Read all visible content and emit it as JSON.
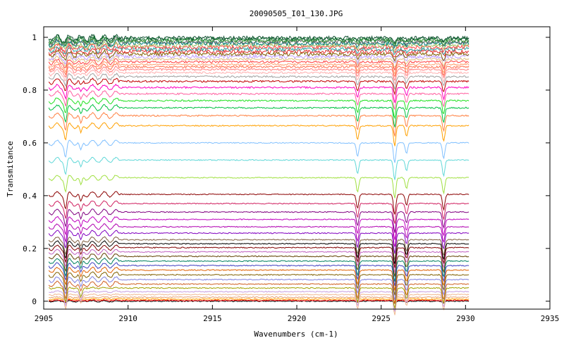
{
  "chart_data": {
    "type": "line",
    "title": "20090505_I01_130.JPG",
    "xlabel": "Wavenumbers (cm-1)",
    "ylabel": "Transmitance",
    "xlim": [
      2905,
      2935
    ],
    "ylim": [
      -0.03,
      1.04
    ],
    "x_ticks": [
      2905,
      2910,
      2915,
      2920,
      2925,
      2930,
      2935
    ],
    "y_ticks": [
      0,
      0.2,
      0.4,
      0.6,
      0.8,
      1
    ],
    "x_tick_labels": [
      "2905",
      "2910",
      "2915",
      "2920",
      "2925",
      "2930",
      "2935"
    ],
    "y_tick_labels": [
      "0",
      "0.2",
      "0.4",
      "0.6",
      "0.8",
      "1"
    ],
    "grid": false,
    "legend": "none",
    "x_range_data": [
      2905.3,
      2930.2
    ],
    "absorption_bands": [
      2906.3,
      2907.2,
      2923.6,
      2925.8,
      2926.5,
      2928.7
    ],
    "series_baselines": [
      0.0,
      0.003,
      0.008,
      0.015,
      0.025,
      0.036,
      0.05,
      0.065,
      0.082,
      0.1,
      0.118,
      0.135,
      0.152,
      0.17,
      0.187,
      0.203,
      0.218,
      0.233,
      0.258,
      0.282,
      0.31,
      0.338,
      0.37,
      0.405,
      0.468,
      0.535,
      0.6,
      0.665,
      0.703,
      0.733,
      0.76,
      0.786,
      0.81,
      0.833,
      0.851,
      0.866,
      0.878,
      0.888,
      0.897,
      0.907,
      0.917,
      0.927,
      0.937,
      0.946,
      0.955,
      0.963,
      0.97,
      0.977,
      0.983,
      0.988,
      0.993,
      0.997
    ],
    "series_colors": [
      "#000000",
      "#ff0000",
      "#ffa500",
      "#e8a070",
      "#f0b890",
      "#c8a0e0",
      "#a0a000",
      "#d06020",
      "#8080e0",
      "#806000",
      "#e06000",
      "#4040c0",
      "#008060",
      "#604000",
      "#c060c0",
      "#800000",
      "#000000",
      "#806040",
      "#8000c0",
      "#b000b0",
      "#c000c0",
      "#800080",
      "#d02060",
      "#8b0000",
      "#a0e040",
      "#60d8d8",
      "#80c0ff",
      "#ffa000",
      "#ff8040",
      "#00c040",
      "#20e020",
      "#ff60a0",
      "#ff00c0",
      "#c00000",
      "#a0a0a0",
      "#ffb0b0",
      "#ff8080",
      "#ff7050",
      "#ffa070",
      "#ff4040",
      "#e0c080",
      "#c0a0ff",
      "#806000",
      "#e03030",
      "#30a0a0",
      "#ff4040",
      "#a0c060",
      "#008080",
      "#606060",
      "#40a040",
      "#208040",
      "#105030"
    ]
  }
}
